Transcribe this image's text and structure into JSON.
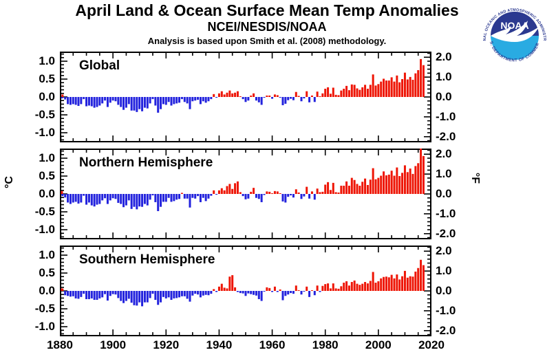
{
  "header": {
    "title": "April Land & Ocean Surface Mean Temp Anomalies",
    "subtitle": "NCEI/NESDIS/NOAA",
    "method": "Analysis is based upon Smith et al. (2008) methodology."
  },
  "logo": {
    "name": "NOAA",
    "top_text": "NATIONAL OCEANIC AND ATMOSPHERIC ADMINISTRATION",
    "bottom_text": "U.S. DEPARTMENT OF COMMERCE",
    "dark_blue": "#2b3990",
    "light_blue": "#29abe2"
  },
  "colors": {
    "positive_bar": "#ee1505",
    "negative_bar": "#2222dd",
    "frame": "#000000",
    "background": "#ffffff"
  },
  "axes": {
    "left_unit": "°C",
    "right_unit": "°F",
    "left_ticks": [
      "1.0",
      "0.5",
      "0.0",
      "-0.5",
      "-1.0"
    ],
    "left_tick_values": [
      1.0,
      0.5,
      0.0,
      -0.5,
      -1.0
    ],
    "right_ticks": [
      "2.0",
      "1.0",
      "0.0",
      "-1.0",
      "-2.0"
    ],
    "right_tick_values": [
      2.0,
      1.0,
      0.0,
      -1.0,
      -2.0
    ],
    "x_ticks": [
      "1880",
      "1900",
      "1920",
      "1940",
      "1960",
      "1980",
      "2000",
      "2020"
    ],
    "x_tick_values": [
      1880,
      1900,
      1920,
      1940,
      1960,
      1980,
      2000,
      2020
    ],
    "x_range": [
      1880,
      2020
    ],
    "ylim_c": [
      -1.28,
      1.28
    ],
    "ylim_f": [
      -2.3,
      2.3
    ]
  },
  "chart_data": [
    {
      "type": "bar",
      "title": "Global",
      "xlabel": "",
      "ylabel_left": "°C",
      "ylabel_right": "°F",
      "start_year": 1880,
      "end_year": 2017,
      "ylim": [
        -1.28,
        1.28
      ],
      "values": [
        -0.04,
        0.07,
        -0.07,
        -0.2,
        -0.22,
        -0.2,
        -0.22,
        -0.25,
        -0.2,
        -0.06,
        -0.26,
        -0.24,
        -0.26,
        -0.3,
        -0.28,
        -0.24,
        -0.18,
        -0.1,
        -0.28,
        -0.16,
        -0.1,
        -0.12,
        -0.22,
        -0.28,
        -0.36,
        -0.3,
        -0.2,
        -0.38,
        -0.38,
        -0.42,
        -0.34,
        -0.4,
        -0.3,
        -0.32,
        -0.18,
        -0.06,
        -0.24,
        -0.44,
        -0.34,
        -0.2,
        -0.22,
        -0.14,
        -0.24,
        -0.2,
        -0.18,
        -0.16,
        -0.06,
        -0.14,
        -0.18,
        -0.34,
        -0.12,
        -0.1,
        -0.08,
        -0.2,
        -0.12,
        -0.16,
        -0.12,
        -0.06,
        0.08,
        -0.02,
        0.1,
        0.16,
        0.07,
        0.12,
        0.18,
        0.1,
        0.12,
        0.16,
        0.02,
        -0.06,
        -0.14,
        -0.1,
        0.04,
        0.1,
        -0.1,
        -0.15,
        -0.22,
        -0.02,
        0.04,
        0.04,
        -0.05,
        0.07,
        0.05,
        -0.02,
        -0.23,
        -0.19,
        -0.09,
        -0.05,
        -0.09,
        0.14,
        0.03,
        -0.12,
        -0.04,
        0.16,
        -0.15,
        0.04,
        -0.14,
        0.15,
        0.02,
        0.1,
        0.23,
        0.27,
        0.09,
        0.26,
        0.06,
        0.05,
        0.18,
        0.23,
        0.31,
        0.19,
        0.35,
        0.34,
        0.24,
        0.2,
        0.27,
        0.34,
        0.23,
        0.34,
        0.63,
        0.32,
        0.36,
        0.43,
        0.51,
        0.46,
        0.46,
        0.55,
        0.43,
        0.6,
        0.41,
        0.5,
        0.68,
        0.49,
        0.56,
        0.48,
        0.66,
        0.75,
        1.06,
        0.89
      ]
    },
    {
      "type": "bar",
      "title": "Northern Hemisphere",
      "xlabel": "",
      "ylabel_left": "°C",
      "ylabel_right": "°F",
      "start_year": 1880,
      "end_year": 2017,
      "ylim": [
        -1.28,
        1.28
      ],
      "values": [
        0.08,
        -0.06,
        -0.1,
        -0.24,
        -0.28,
        -0.24,
        -0.22,
        -0.27,
        -0.24,
        -0.05,
        -0.3,
        -0.24,
        -0.32,
        -0.35,
        -0.3,
        -0.28,
        -0.18,
        -0.12,
        -0.28,
        -0.18,
        -0.12,
        -0.14,
        -0.25,
        -0.28,
        -0.37,
        -0.32,
        -0.18,
        -0.42,
        -0.36,
        -0.43,
        -0.35,
        -0.36,
        -0.28,
        -0.32,
        -0.16,
        -0.04,
        -0.23,
        -0.48,
        -0.36,
        -0.22,
        -0.22,
        -0.11,
        -0.22,
        -0.2,
        -0.16,
        -0.14,
        0.03,
        -0.13,
        -0.13,
        -0.38,
        -0.11,
        -0.13,
        -0.06,
        -0.23,
        -0.11,
        -0.2,
        -0.13,
        -0.05,
        0.1,
        -0.02,
        0.1,
        0.16,
        0.1,
        0.22,
        0.28,
        0.14,
        0.3,
        0.35,
        0.05,
        -0.06,
        -0.15,
        -0.13,
        0.06,
        0.17,
        -0.11,
        -0.14,
        -0.23,
        -0.03,
        0.07,
        0.06,
        0.01,
        0.08,
        0.07,
        0.02,
        -0.21,
        -0.24,
        -0.08,
        -0.04,
        -0.1,
        0.13,
        0.04,
        -0.14,
        -0.07,
        0.2,
        -0.13,
        0.07,
        -0.16,
        0.15,
        0.05,
        0.06,
        0.26,
        0.33,
        0.11,
        0.31,
        0.05,
        0.04,
        0.23,
        0.23,
        0.35,
        0.23,
        0.45,
        0.39,
        0.28,
        0.23,
        0.34,
        0.43,
        0.25,
        0.4,
        0.72,
        0.41,
        0.45,
        0.51,
        0.63,
        0.52,
        0.54,
        0.65,
        0.51,
        0.74,
        0.5,
        0.59,
        0.8,
        0.61,
        0.71,
        0.56,
        0.78,
        0.86,
        1.27,
        1.06
      ]
    },
    {
      "type": "bar",
      "title": "Southern Hemisphere",
      "xlabel": "",
      "ylabel_left": "°C",
      "ylabel_right": "°F",
      "start_year": 1880,
      "end_year": 2017,
      "ylim": [
        -1.28,
        1.28
      ],
      "values": [
        0.07,
        0.06,
        -0.12,
        -0.14,
        -0.16,
        -0.15,
        -0.21,
        -0.22,
        -0.17,
        -0.08,
        -0.23,
        -0.23,
        -0.21,
        -0.25,
        -0.25,
        -0.21,
        -0.18,
        -0.09,
        -0.27,
        -0.14,
        -0.09,
        -0.1,
        -0.2,
        -0.28,
        -0.34,
        -0.28,
        -0.22,
        -0.33,
        -0.4,
        -0.41,
        -0.32,
        -0.43,
        -0.32,
        -0.32,
        -0.2,
        -0.08,
        -0.25,
        -0.39,
        -0.32,
        -0.17,
        -0.21,
        -0.18,
        -0.25,
        -0.21,
        -0.2,
        -0.18,
        -0.15,
        -0.15,
        -0.22,
        -0.3,
        -0.13,
        -0.08,
        -0.1,
        -0.18,
        -0.13,
        -0.11,
        -0.12,
        -0.08,
        0.05,
        -0.03,
        0.12,
        0.2,
        0.09,
        0.07,
        0.4,
        0.44,
        0.1,
        -0.03,
        -0.06,
        -0.07,
        -0.14,
        -0.07,
        -0.09,
        -0.11,
        -0.13,
        -0.23,
        -0.28,
        -0.01,
        0.1,
        0.08,
        -0.03,
        0.12,
        -0.03,
        0.04,
        -0.26,
        -0.14,
        -0.1,
        -0.06,
        -0.08,
        0.15,
        0.02,
        -0.1,
        -0.01,
        0.12,
        -0.17,
        0.01,
        -0.12,
        0.15,
        -0.03,
        0.14,
        0.19,
        0.21,
        0.07,
        0.21,
        0.07,
        0.06,
        0.13,
        0.23,
        0.27,
        0.15,
        0.25,
        0.29,
        0.2,
        0.17,
        0.2,
        0.25,
        0.21,
        0.28,
        0.53,
        0.23,
        0.27,
        0.35,
        0.39,
        0.4,
        0.38,
        0.45,
        0.35,
        0.46,
        0.32,
        0.41,
        0.56,
        0.37,
        0.41,
        0.4,
        0.54,
        0.64,
        0.87,
        0.72
      ]
    }
  ]
}
